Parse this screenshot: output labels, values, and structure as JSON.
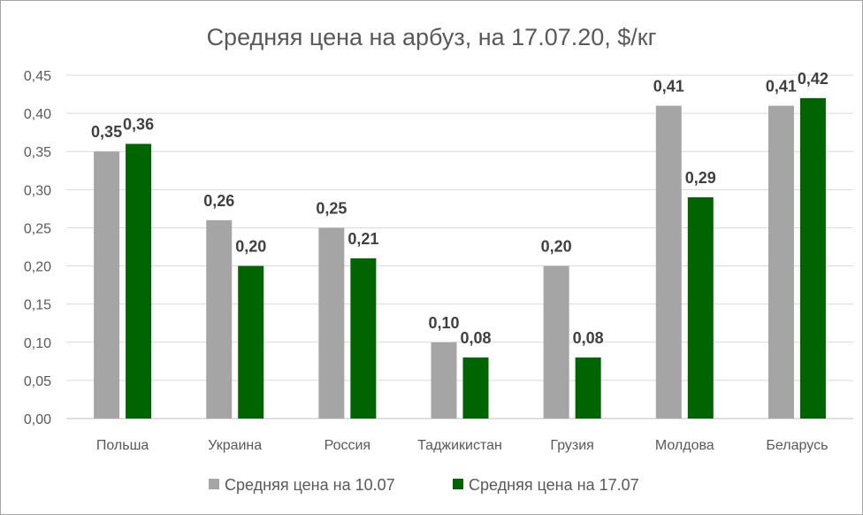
{
  "chart_data": {
    "type": "bar",
    "title": "Средняя цена на арбуз, на 17.07.20, $/кг",
    "categories": [
      "Польша",
      "Украина",
      "Россия",
      "Таджикистан",
      "Грузия",
      "Молдова",
      "Беларусь"
    ],
    "series": [
      {
        "name": "Средняя цена на 10.07",
        "color": "#a5a5a5",
        "values": [
          0.35,
          0.26,
          0.25,
          0.1,
          0.2,
          0.41,
          0.41
        ],
        "labels": [
          "0,35",
          "0,26",
          "0,25",
          "0,10",
          "0,20",
          "0,41",
          "0,41"
        ]
      },
      {
        "name": "Средняя цена на 17.07",
        "color": "#006400",
        "values": [
          0.36,
          0.2,
          0.21,
          0.08,
          0.08,
          0.29,
          0.42
        ],
        "labels": [
          "0,36",
          "0,20",
          "0,21",
          "0,08",
          "0,08",
          "0,29",
          "0,42"
        ]
      }
    ],
    "yticks": [
      "0,00",
      "0,05",
      "0,10",
      "0,15",
      "0,20",
      "0,25",
      "0,30",
      "0,35",
      "0,40",
      "0,45"
    ],
    "ylim": [
      0,
      0.45
    ],
    "grid": true,
    "legend": "bottom"
  }
}
